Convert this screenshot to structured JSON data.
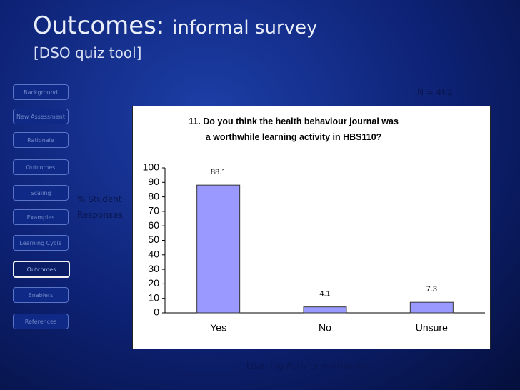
{
  "header": {
    "title_lead": "Outcomes:",
    "title_rest": "informal survey",
    "subtitle": "[DSO quiz tool]"
  },
  "nav": [
    "Background",
    "New Assessment",
    "Rationale",
    "Outcomes",
    "Scaling",
    "Examples",
    "Learning Cycle",
    "Outcomes",
    "Enablers",
    "References"
  ],
  "sample_size": "N = 462",
  "y_axis_label": "% Student Responses",
  "x_axis_label": "Learning Activity worthwhile",
  "chart_data": {
    "type": "bar",
    "title": "11. Do you think the health behaviour journal was a worthwhile learning activity in HBS110?",
    "categories": [
      "Yes",
      "No",
      "Unsure"
    ],
    "values": [
      88.1,
      4.1,
      7.3
    ],
    "color": "#9999ff",
    "ylim": [
      0,
      100
    ],
    "yticks": [
      0,
      10,
      20,
      30,
      40,
      50,
      60,
      70,
      80,
      90,
      100
    ]
  }
}
